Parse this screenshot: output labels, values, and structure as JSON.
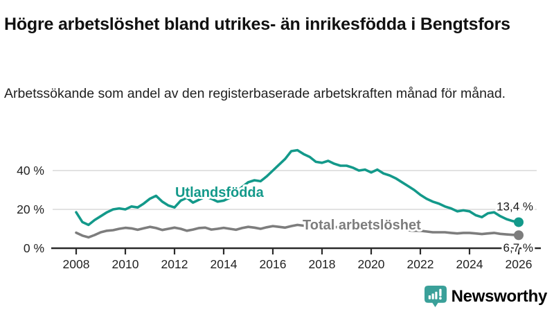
{
  "title": "Högre arbetslöshet bland utrikes- än inrikesfödda i Bengtsfors",
  "subtitle": "Arbetssökande som andel av den registerbaserade arbetskraften månad för månad.",
  "chart_data": {
    "type": "line",
    "x_start": 2008,
    "x_step": 0.25,
    "x_ticks": [
      2008,
      2010,
      2012,
      2014,
      2016,
      2018,
      2020,
      2022,
      2024,
      2026
    ],
    "y_ticks": [
      0,
      20,
      40
    ],
    "y_tick_suffix": " %",
    "ylim": [
      0,
      55
    ],
    "xlim": [
      2008,
      2026
    ],
    "grid": "horizontal",
    "legend_position": "inline-labels",
    "series": [
      {
        "name": "Utlandsfödda",
        "color": "#13998a",
        "end_value": 13.4,
        "end_label": "13,4 %",
        "values": [
          18.5,
          13.5,
          12.0,
          14.5,
          16.5,
          18.5,
          20.0,
          20.5,
          20.0,
          21.5,
          21.0,
          23.0,
          25.5,
          27.0,
          24.0,
          22.0,
          21.0,
          24.5,
          26.0,
          23.5,
          25.0,
          26.5,
          25.5,
          24.0,
          24.5,
          26.0,
          29.0,
          31.5,
          34.0,
          35.0,
          34.5,
          37.0,
          40.0,
          43.0,
          46.0,
          50.0,
          50.5,
          48.5,
          47.0,
          44.5,
          44.0,
          45.0,
          43.5,
          42.5,
          42.5,
          41.5,
          40.0,
          40.5,
          39.0,
          40.5,
          38.5,
          37.5,
          36.0,
          34.0,
          32.0,
          30.0,
          27.5,
          25.5,
          24.0,
          23.0,
          21.5,
          20.5,
          19.0,
          19.5,
          19.0,
          17.0,
          16.0,
          18.0,
          18.5,
          16.5,
          15.0,
          14.0,
          13.4
        ]
      },
      {
        "name": "Total arbetslöshet",
        "color": "#7d7d7d",
        "end_value": 6.7,
        "end_label": "6,7 %",
        "values": [
          8.0,
          6.5,
          5.6,
          6.8,
          8.2,
          9.0,
          9.3,
          10.0,
          10.5,
          10.2,
          9.5,
          10.3,
          11.0,
          10.4,
          9.4,
          10.0,
          10.6,
          10.0,
          9.0,
          9.6,
          10.4,
          10.6,
          9.6,
          10.0,
          10.5,
          10.0,
          9.5,
          10.4,
          11.0,
          10.6,
          10.0,
          10.8,
          11.4,
          11.0,
          10.6,
          11.4,
          12.0,
          11.6,
          11.2,
          11.6,
          11.6,
          11.2,
          10.8,
          11.0,
          11.0,
          10.6,
          10.2,
          10.6,
          11.0,
          11.4,
          10.6,
          10.2,
          10.2,
          9.8,
          9.2,
          9.0,
          9.0,
          8.6,
          8.2,
          8.2,
          8.2,
          7.9,
          7.6,
          7.9,
          7.9,
          7.6,
          7.3,
          7.6,
          7.9,
          7.4,
          7.1,
          6.9,
          6.7
        ]
      }
    ]
  },
  "branding": {
    "logo_text": "Newsworthy",
    "logo_color": "#2f9c92",
    "logo_icon": "bar-chart-exclamation-pin"
  },
  "colors": {
    "background": "#ffffff",
    "title_text": "#111111",
    "subtitle_text": "#1f1f1f",
    "axis": "#2a2a2a",
    "axis_text": "#222222",
    "gridline": "#d9d9d9",
    "annotation_text": "#1a1a1a",
    "series_teal": "#13998a",
    "series_gray": "#7d7d7d"
  }
}
